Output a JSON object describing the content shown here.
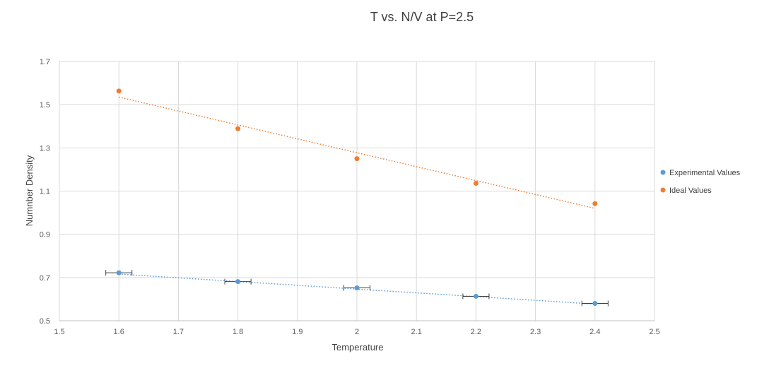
{
  "chart_data": {
    "type": "scatter",
    "title": "T vs. N/V at P=2.5",
    "xlabel": "Temperature",
    "ylabel": "Numnber Density",
    "xlim": [
      1.5,
      2.5
    ],
    "ylim": [
      0.5,
      1.7
    ],
    "x_ticks": [
      "1.5",
      "1.6",
      "1.7",
      "1.8",
      "1.9",
      "2",
      "2.1",
      "2.2",
      "2.3",
      "2.4",
      "2.5"
    ],
    "y_ticks": [
      "0.5",
      "0.7",
      "0.9",
      "1.1",
      "1.3",
      "1.5",
      "1.7"
    ],
    "grid": true,
    "legend_position": "right",
    "series": [
      {
        "name": "Experimental Values",
        "color": "#5B9BD5",
        "x": [
          1.6,
          1.8,
          2.0,
          2.2,
          2.4
        ],
        "y": [
          0.722,
          0.681,
          0.652,
          0.613,
          0.58
        ],
        "x_error": 0.022,
        "trendline": {
          "type": "linear",
          "from": [
            1.6,
            0.716
          ],
          "to": [
            2.4,
            0.577
          ]
        }
      },
      {
        "name": "Ideal Values",
        "color": "#ED7D31",
        "x": [
          1.6,
          1.8,
          2.0,
          2.2,
          2.4
        ],
        "y": [
          1.563,
          1.389,
          1.25,
          1.136,
          1.042
        ],
        "trendline": {
          "type": "linear",
          "from": [
            1.6,
            1.535
          ],
          "to": [
            2.4,
            1.02
          ]
        }
      }
    ]
  }
}
